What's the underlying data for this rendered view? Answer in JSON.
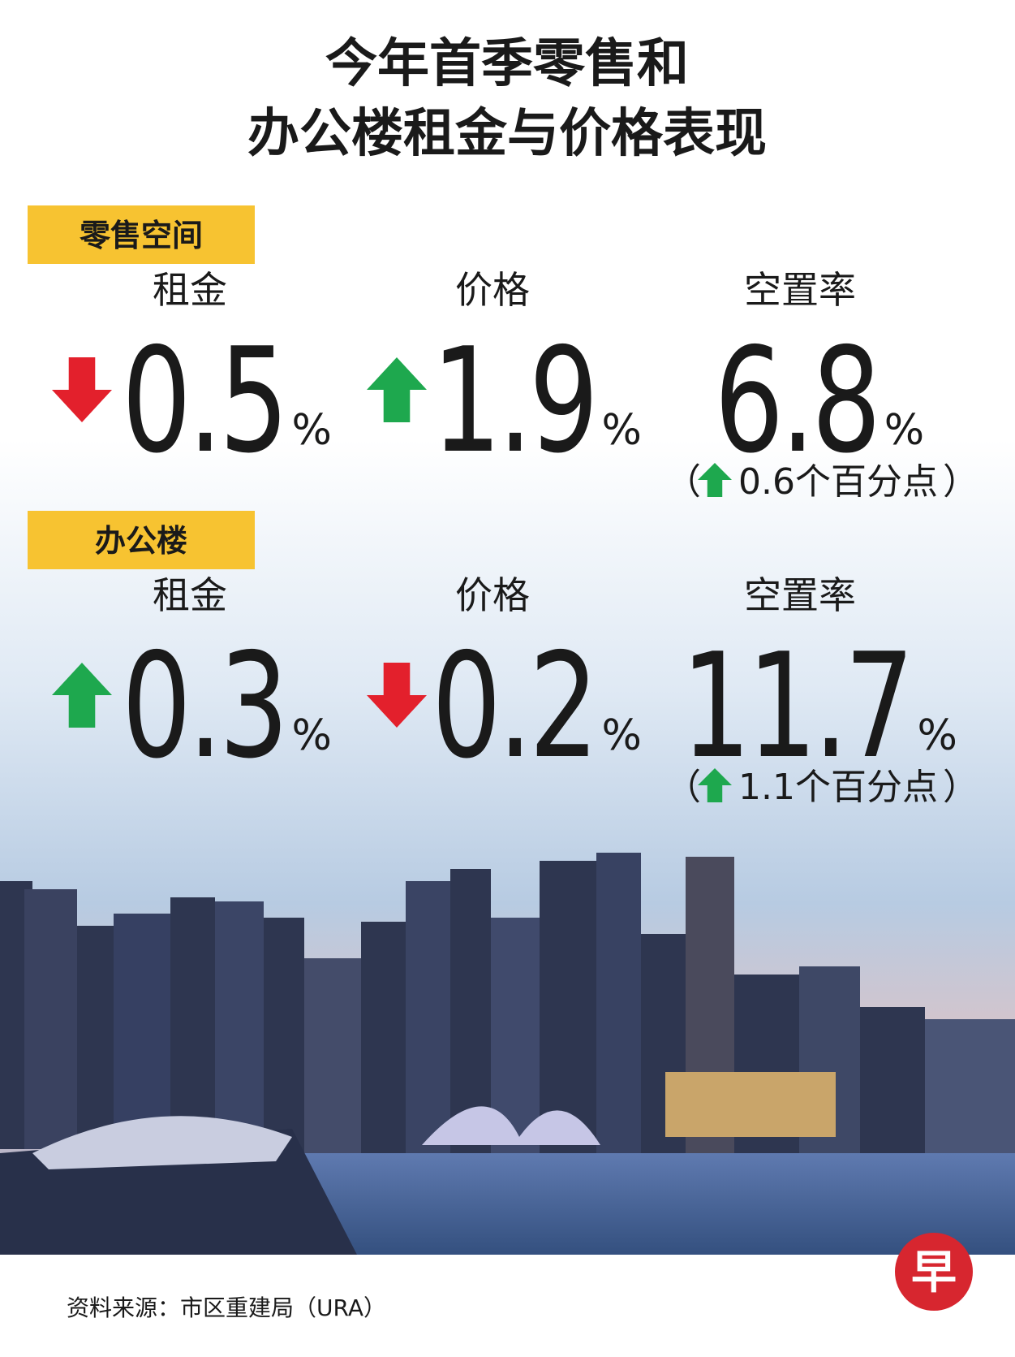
{
  "title": [
    "今年首季零售和",
    "办公楼租金与价格表现"
  ],
  "sections": [
    {
      "label": "零售空间",
      "metrics": [
        {
          "label": "租金",
          "value": 0.5,
          "unit": "%",
          "direction": "down"
        },
        {
          "label": "价格",
          "value": 1.9,
          "unit": "%",
          "direction": "up"
        },
        {
          "label": "空置率",
          "value": 6.8,
          "unit": "%",
          "note": {
            "brackets": [
              "（",
              "）"
            ],
            "direction": "up",
            "text": "0.6个百分点"
          }
        }
      ]
    },
    {
      "label": "办公楼",
      "metrics": [
        {
          "label": "租金",
          "value": 0.3,
          "unit": "%",
          "direction": "up"
        },
        {
          "label": "价格",
          "value": 0.2,
          "unit": "%",
          "direction": "down"
        },
        {
          "label": "空置率",
          "value": 11.7,
          "unit": "%",
          "note": {
            "brackets": [
              "（",
              "）"
            ],
            "direction": "up",
            "text": "1.1个百分点"
          }
        }
      ]
    }
  ],
  "source": "资料来源：市区重建局（URA）",
  "logo": "早"
}
